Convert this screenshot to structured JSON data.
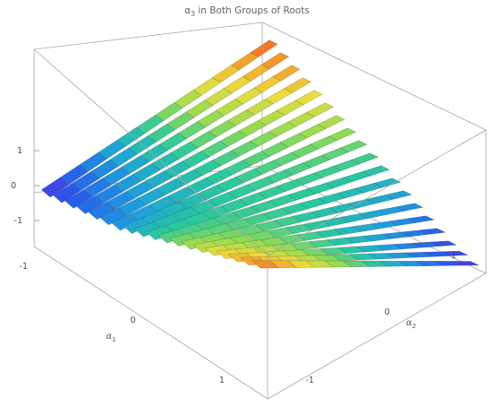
{
  "chart_data": {
    "type": "surface3d",
    "title": "α₃ in Both Groups of Roots",
    "title_main": "α",
    "title_sub": "3",
    "title_rest": " in Both Groups of Roots",
    "x_axis": {
      "name": "α",
      "sub": "1",
      "ticks": [
        -1,
        0,
        1
      ],
      "range": [
        -1.5,
        1.5
      ]
    },
    "y_axis": {
      "name": "α",
      "sub": "2",
      "ticks": [
        -1,
        0,
        1
      ],
      "range": [
        -1.5,
        1.5
      ]
    },
    "z_axis": {
      "ticks": [
        1,
        0,
        -1
      ],
      "range": [
        -1.5,
        1.5
      ]
    },
    "colormap": "rainbow",
    "series": [
      {
        "description": "sheared family of strips across α1",
        "alpha1_values": [
          -1.35,
          -1.2,
          -1.05,
          -0.9,
          -0.75,
          -0.6,
          -0.45,
          -0.3,
          -0.15,
          0.0,
          0.15,
          0.3,
          0.45,
          0.6,
          0.75,
          0.9,
          1.05,
          1.2,
          1.35
        ],
        "alpha3_at_alpha2_min": [
          -1.3,
          -1.2,
          -1.1,
          -1.0,
          -0.9,
          -0.8,
          -0.7,
          -0.55,
          -0.4,
          -0.25,
          -0.1,
          0.05,
          0.2,
          0.35,
          0.5,
          0.65,
          0.8,
          0.95,
          1.1
        ],
        "alpha3_at_alpha2_max": [
          1.2,
          1.05,
          0.9,
          0.75,
          0.6,
          0.45,
          0.3,
          0.15,
          0.0,
          -0.15,
          -0.3,
          -0.45,
          -0.6,
          -0.75,
          -0.9,
          -1.05,
          -1.2,
          -1.3,
          -1.4
        ]
      }
    ]
  }
}
